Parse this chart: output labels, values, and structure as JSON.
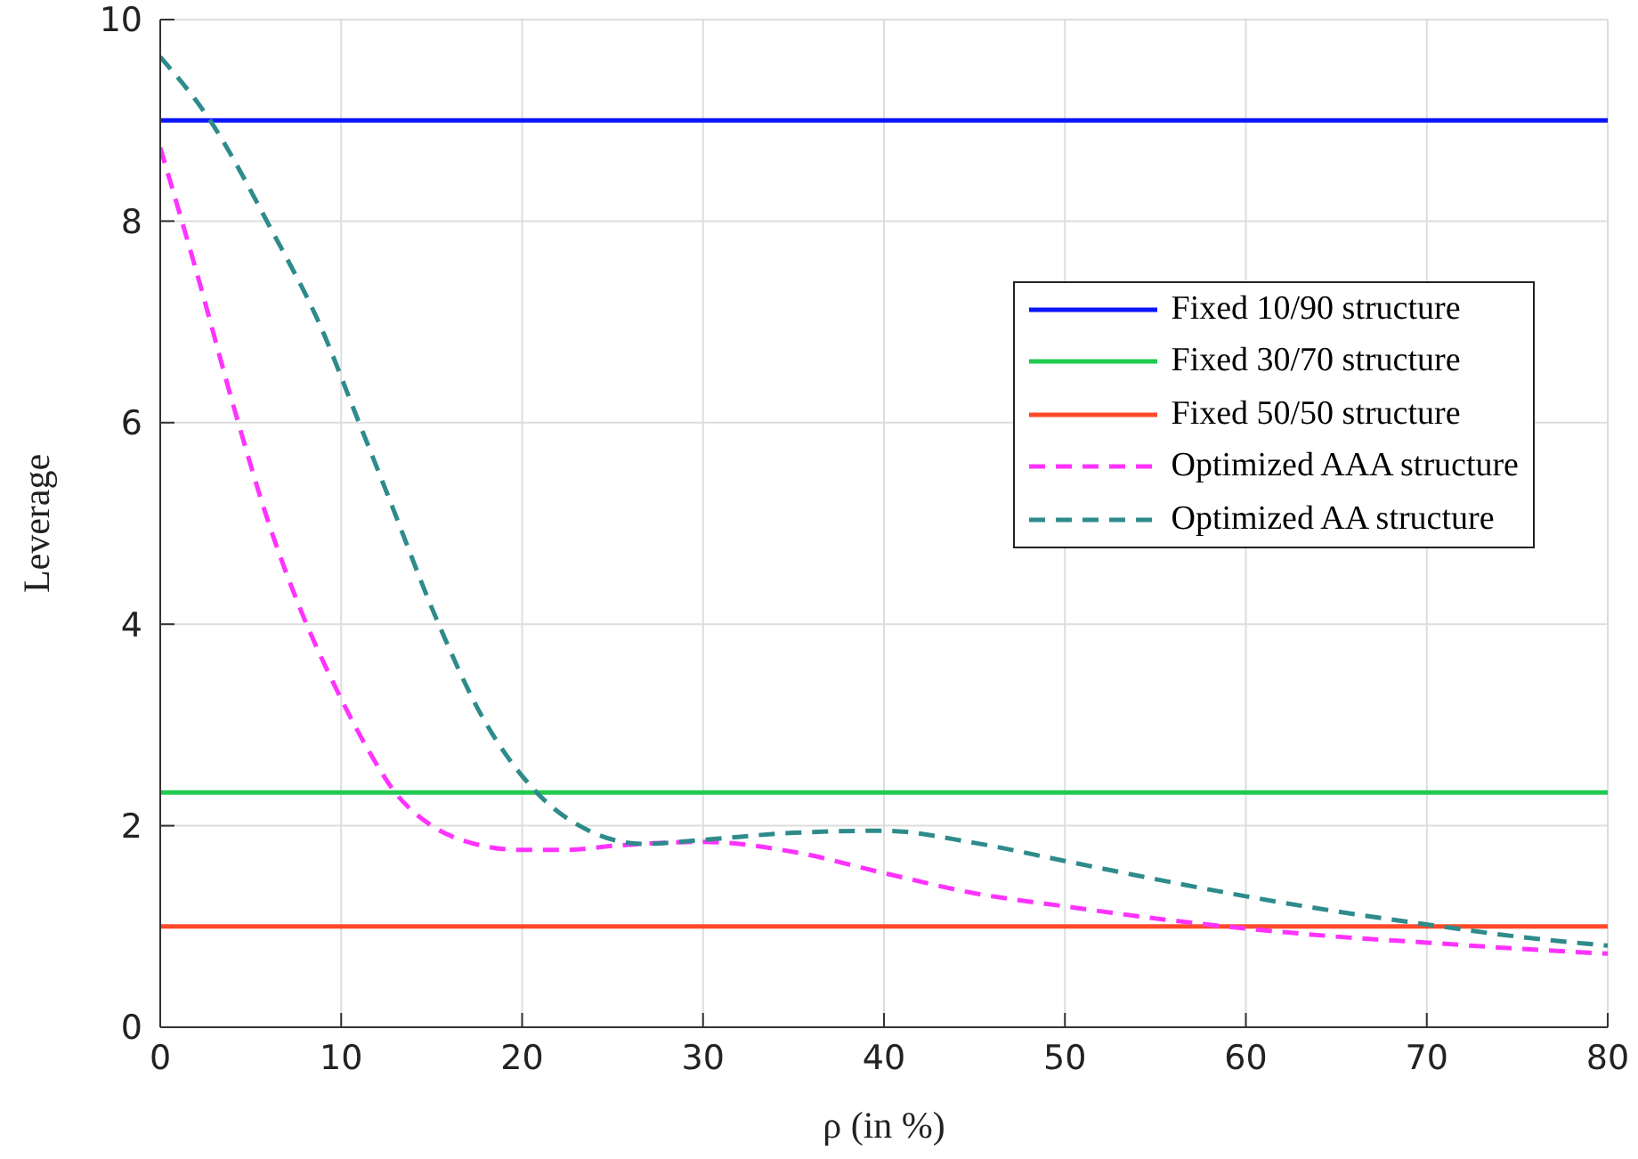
{
  "chart_data": {
    "type": "line",
    "xlabel": "ρ (in %)",
    "ylabel": "Leverage",
    "xlim": [
      0,
      80
    ],
    "xticks": [
      0,
      10,
      20,
      30,
      40,
      50,
      60,
      70,
      80
    ],
    "ylim": [
      0,
      10
    ],
    "yticks": [
      0,
      2,
      4,
      6,
      8,
      10
    ],
    "grid": true,
    "legend": "top right",
    "series": [
      {
        "name": "Fixed 10/90 structure",
        "color": "#0a14ff",
        "line_style": "solid",
        "x": [
          0,
          80
        ],
        "values": [
          9,
          9
        ]
      },
      {
        "name": "Fixed 30/70 structure",
        "color": "#1fca4f",
        "line_style": "solid",
        "x": [
          0,
          80
        ],
        "values": [
          2.33,
          2.33
        ]
      },
      {
        "name": "Fixed 50/50 structure",
        "color": "#ff4a2a",
        "line_style": "solid",
        "x": [
          0,
          80
        ],
        "values": [
          1.0,
          1.0
        ]
      },
      {
        "name": "Optimized AAA structure",
        "color": "#ff33ff",
        "line_style": "dashed",
        "x": [
          0,
          2,
          4.2,
          6,
          7.9,
          9.75,
          11.5,
          12.9,
          15,
          16.8,
          19.9,
          22.5,
          25,
          30,
          35,
          40,
          45,
          50,
          55,
          60,
          65,
          70,
          75,
          80
        ],
        "values": [
          8.73,
          7.5,
          6.07,
          5.0,
          4.08,
          3.35,
          2.75,
          2.35,
          2.0,
          1.85,
          1.76,
          1.76,
          1.8,
          1.84,
          1.74,
          1.53,
          1.33,
          1.2,
          1.08,
          0.98,
          0.9,
          0.84,
          0.78,
          0.73
        ]
      },
      {
        "name": "Optimized AA structure",
        "color": "#2e8b8b",
        "line_style": "dashed",
        "x": [
          0,
          2.75,
          6.1,
          8.9,
          10.9,
          12.6,
          15.2,
          17.8,
          20.7,
          23.7,
          26.7,
          30,
          35,
          40,
          45,
          50,
          55,
          60,
          65,
          70,
          75,
          80
        ],
        "values": [
          9.63,
          9.0,
          7.93,
          6.94,
          6.04,
          5.27,
          4.08,
          3.08,
          2.35,
          1.95,
          1.82,
          1.86,
          1.93,
          1.95,
          1.83,
          1.65,
          1.47,
          1.3,
          1.15,
          1.02,
          0.9,
          0.81
        ]
      }
    ]
  }
}
